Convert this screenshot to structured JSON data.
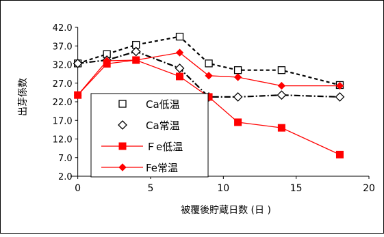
{
  "chart_data": {
    "type": "line",
    "title": "",
    "ylabel": "出芽係数",
    "xlabel": "被覆後貯蔵日数 (日 )",
    "ylim": [
      2,
      42
    ],
    "xlim": [
      -0.5,
      20
    ],
    "yticks": [
      "42.0",
      "37.0",
      "32.0",
      "27.0",
      "22.0",
      "17.0",
      "12.0",
      "7.0",
      "2.0"
    ],
    "ytick_values": [
      42,
      37,
      32,
      27,
      22,
      17,
      12,
      7,
      2
    ],
    "xticks": [
      "0",
      "5",
      "10",
      "15",
      "20"
    ],
    "xtick_values": [
      0,
      5,
      10,
      15,
      20
    ],
    "grid": false,
    "legend_position": "lower-left",
    "series": [
      {
        "name": "Ca低温",
        "marker": "open-square",
        "line": "dashed",
        "color": "#000000",
        "x": [
          0,
          2,
          4,
          7,
          9,
          11,
          14,
          18
        ],
        "y": [
          32.3,
          34.8,
          37.3,
          39.5,
          32.3,
          30.5,
          30.5,
          26.5
        ]
      },
      {
        "name": "Ca常温",
        "marker": "open-diamond",
        "line": "dash-dot",
        "color": "#000000",
        "x": [
          0,
          2,
          4,
          7,
          9,
          11,
          14,
          18
        ],
        "y": [
          32.3,
          33.2,
          35.5,
          31.0,
          23.3,
          23.3,
          23.8,
          23.3
        ]
      },
      {
        "name": "Ｆe低温",
        "marker": "filled-square",
        "line": "solid",
        "color": "#ff0000",
        "x": [
          0,
          2,
          4,
          7,
          9,
          11,
          14,
          18
        ],
        "y": [
          23.8,
          32.2,
          33.2,
          28.8,
          23.3,
          16.5,
          15.0,
          7.8
        ]
      },
      {
        "name": "Fe常温",
        "marker": "filled-diamond",
        "line": "solid",
        "color": "#ff0000",
        "x": [
          0,
          2,
          4,
          7,
          9,
          11,
          14,
          18
        ],
        "y": [
          23.8,
          33.0,
          33.2,
          35.2,
          29.0,
          28.6,
          26.3,
          26.3
        ]
      }
    ]
  }
}
